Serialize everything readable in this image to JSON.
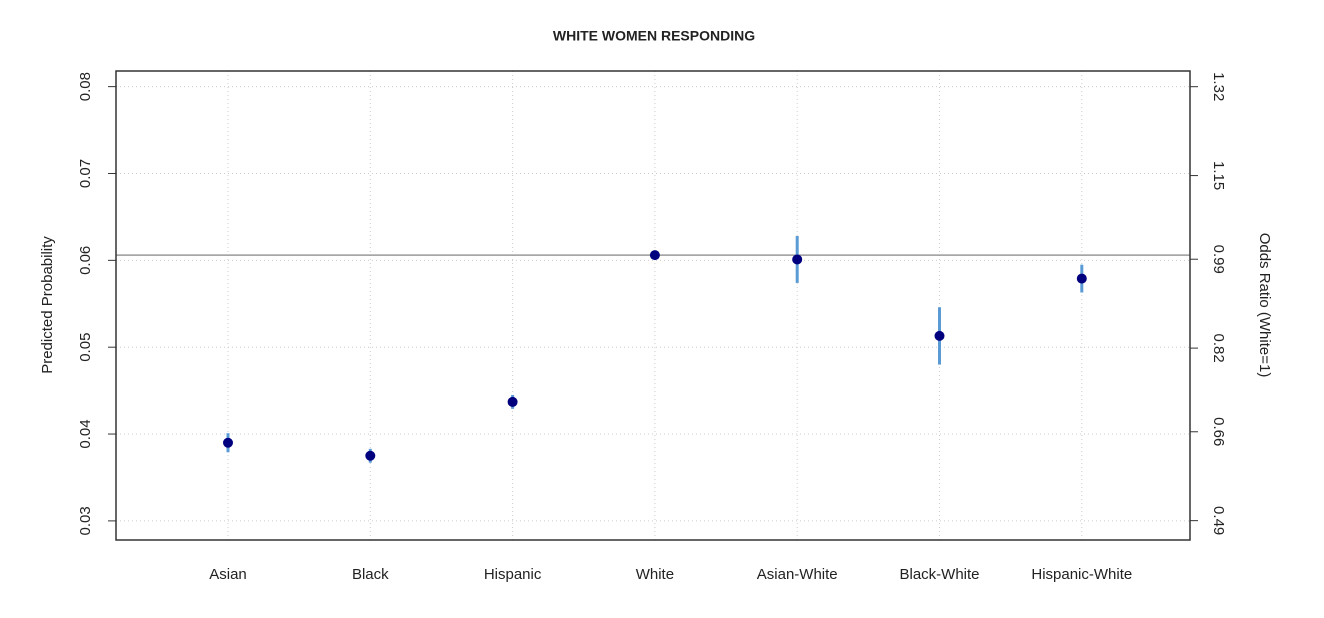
{
  "chart_data": {
    "type": "errorbar",
    "title": "WHITE WOMEN RESPONDING",
    "ylabel": "Predicted Probability",
    "y2label": "Odds Ratio (White=1)",
    "categories": [
      "Asian",
      "Black",
      "Hispanic",
      "White",
      "Asian-White",
      "Black-White",
      "Hispanic-White"
    ],
    "values": [
      0.039,
      0.0375,
      0.0437,
      0.0606,
      0.0601,
      0.0513,
      0.0579
    ],
    "errors": [
      0.0011,
      0.0008,
      0.0008,
      0,
      0.0027,
      0.0033,
      0.0016
    ],
    "color": "#00007f",
    "error_color": "#5b9bd5",
    "reference_line": 0.0606,
    "ylim": [
      0.0278,
      0.0818
    ],
    "yticks": [
      0.03,
      0.04,
      0.05,
      0.06,
      0.07,
      0.08
    ],
    "y2lim": [
      0.453,
      1.35
    ],
    "y2ticks": [
      0.49,
      0.66,
      0.82,
      0.99,
      1.15,
      1.32
    ],
    "grid": true
  }
}
